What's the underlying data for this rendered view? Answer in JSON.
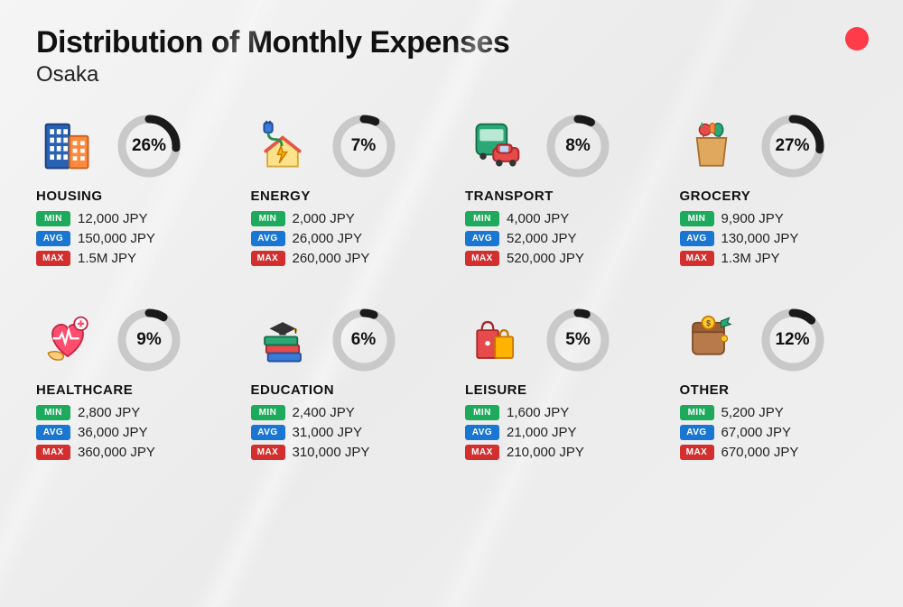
{
  "title": "Distribution of Monthly Expenses",
  "subtitle": "Osaka",
  "accent_dot_color": "#ff3b4a",
  "badge_colors": {
    "min": "#1eaa5c",
    "avg": "#1976d2",
    "max": "#d32f2f"
  },
  "badge_labels": {
    "min": "MIN",
    "avg": "AVG",
    "max": "MAX"
  },
  "donut": {
    "bg_stroke": "#c9c9c9",
    "fg_stroke": "#1a1a1a",
    "stroke_width": 9,
    "radius": 30
  },
  "categories": [
    {
      "name": "HOUSING",
      "pct": 26,
      "min": "12,000 JPY",
      "avg": "150,000 JPY",
      "max": "1.5M JPY",
      "icon": "building"
    },
    {
      "name": "ENERGY",
      "pct": 7,
      "min": "2,000 JPY",
      "avg": "26,000 JPY",
      "max": "260,000 JPY",
      "icon": "energy"
    },
    {
      "name": "TRANSPORT",
      "pct": 8,
      "min": "4,000 JPY",
      "avg": "52,000 JPY",
      "max": "520,000 JPY",
      "icon": "transport"
    },
    {
      "name": "GROCERY",
      "pct": 27,
      "min": "9,900 JPY",
      "avg": "130,000 JPY",
      "max": "1.3M JPY",
      "icon": "grocery"
    },
    {
      "name": "HEALTHCARE",
      "pct": 9,
      "min": "2,800 JPY",
      "avg": "36,000 JPY",
      "max": "360,000 JPY",
      "icon": "healthcare"
    },
    {
      "name": "EDUCATION",
      "pct": 6,
      "min": "2,400 JPY",
      "avg": "31,000 JPY",
      "max": "310,000 JPY",
      "icon": "education"
    },
    {
      "name": "LEISURE",
      "pct": 5,
      "min": "1,600 JPY",
      "avg": "21,000 JPY",
      "max": "210,000 JPY",
      "icon": "leisure"
    },
    {
      "name": "OTHER",
      "pct": 12,
      "min": "5,200 JPY",
      "avg": "67,000 JPY",
      "max": "670,000 JPY",
      "icon": "other"
    }
  ]
}
